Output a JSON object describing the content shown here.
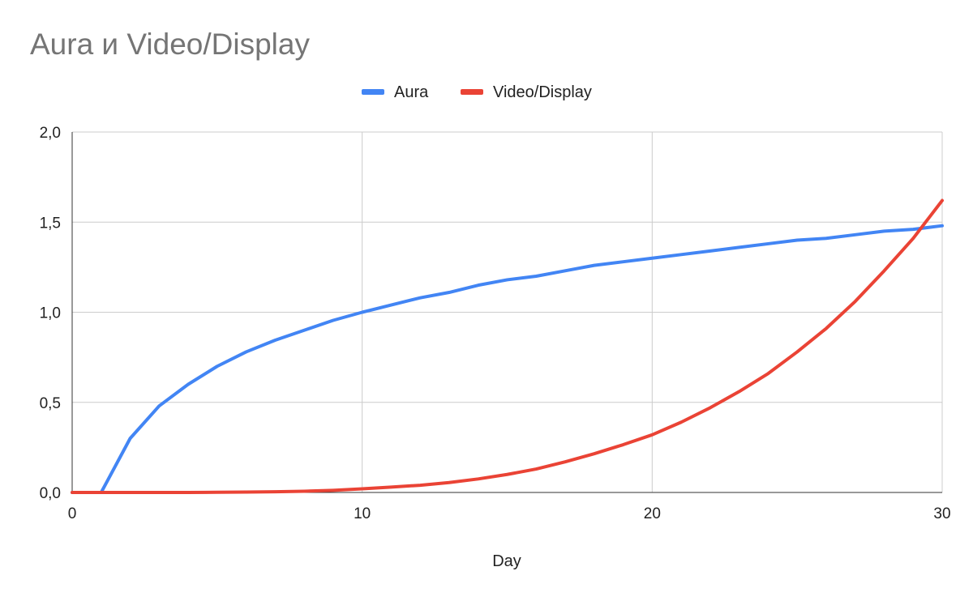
{
  "chart_data": {
    "type": "line",
    "title": "Aura и Video/Display",
    "xlabel": "Day",
    "ylabel": "",
    "xlim": [
      0,
      30
    ],
    "ylim": [
      0,
      2
    ],
    "x_ticks": [
      0,
      10,
      20,
      30
    ],
    "y_ticks": [
      "0,0",
      "0,5",
      "1,0",
      "1,5",
      "2,0"
    ],
    "y_tick_values": [
      0,
      0.5,
      1,
      1.5,
      2
    ],
    "grid": true,
    "legend_position": "top-center",
    "series": [
      {
        "name": "Aura",
        "color": "#4285f4",
        "x": [
          0,
          1,
          2,
          3,
          4,
          5,
          6,
          7,
          8,
          9,
          10,
          11,
          12,
          13,
          14,
          15,
          16,
          17,
          18,
          19,
          20,
          21,
          22,
          23,
          24,
          25,
          26,
          27,
          28,
          29,
          30
        ],
        "values": [
          0,
          0,
          0.3,
          0.48,
          0.6,
          0.7,
          0.78,
          0.845,
          0.9,
          0.955,
          1.0,
          1.04,
          1.08,
          1.11,
          1.15,
          1.18,
          1.2,
          1.23,
          1.26,
          1.28,
          1.3,
          1.32,
          1.34,
          1.36,
          1.38,
          1.4,
          1.41,
          1.43,
          1.45,
          1.46,
          1.48
        ]
      },
      {
        "name": "Video/Display",
        "color": "#ea4335",
        "x": [
          0,
          1,
          2,
          3,
          4,
          5,
          6,
          7,
          8,
          9,
          10,
          11,
          12,
          13,
          14,
          15,
          16,
          17,
          18,
          19,
          20,
          21,
          22,
          23,
          24,
          25,
          26,
          27,
          28,
          29,
          30
        ],
        "values": [
          0,
          0,
          0,
          0,
          0,
          0.001,
          0.002,
          0.004,
          0.007,
          0.012,
          0.02,
          0.03,
          0.04,
          0.055,
          0.075,
          0.1,
          0.13,
          0.17,
          0.215,
          0.265,
          0.32,
          0.39,
          0.47,
          0.56,
          0.66,
          0.78,
          0.91,
          1.06,
          1.23,
          1.41,
          1.62
        ]
      }
    ]
  }
}
